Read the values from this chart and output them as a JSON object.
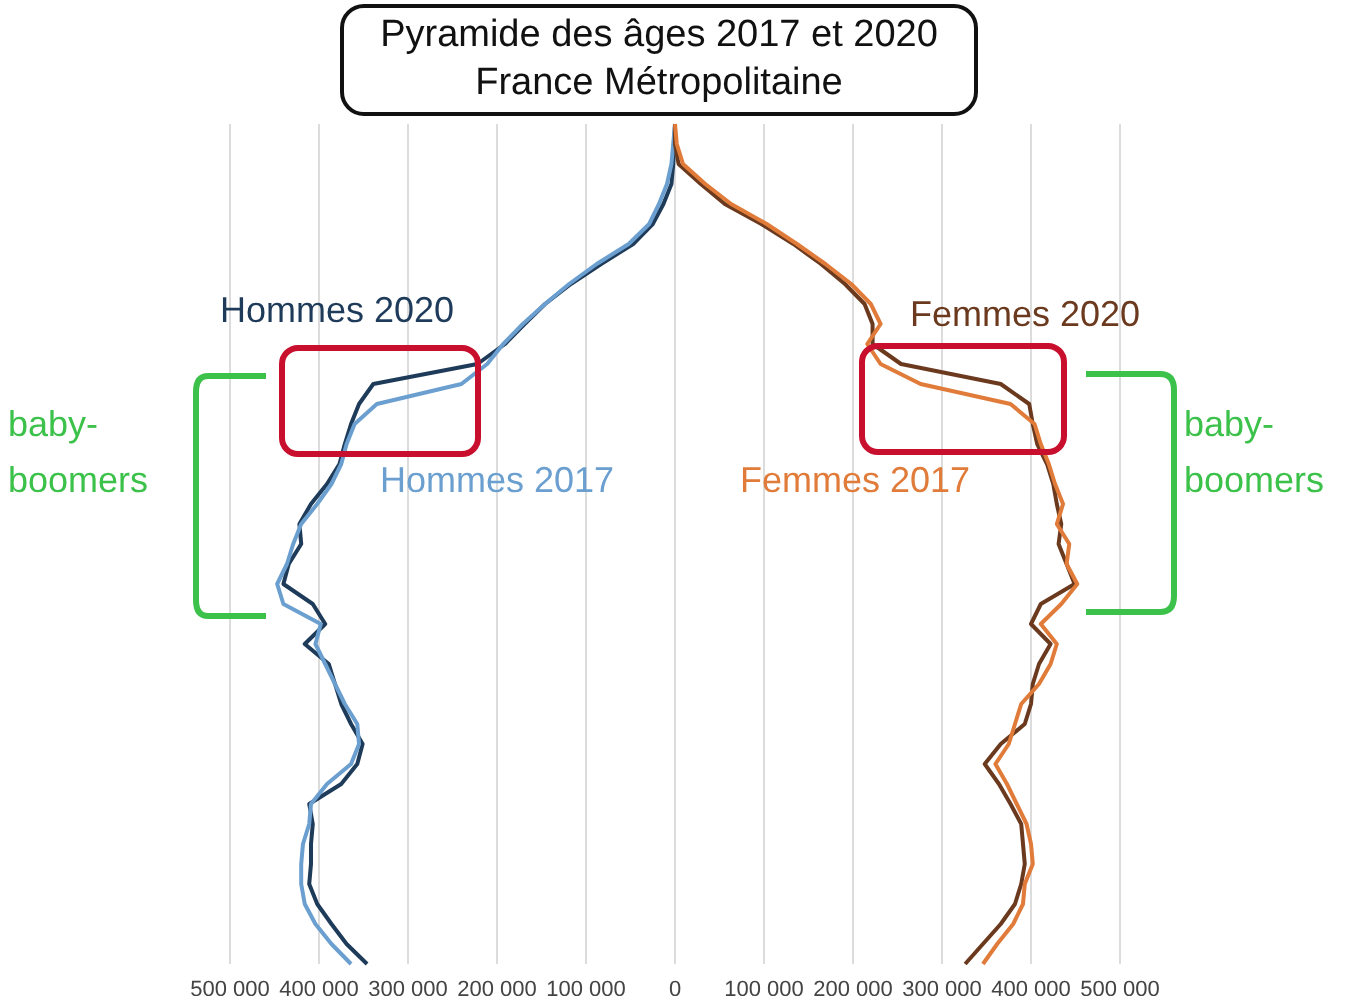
{
  "chart_data": {
    "type": "line",
    "orientation": "horizontal",
    "title": "Pyramide des âges 2017 et 2020",
    "subtitle": "France Métropolitaine",
    "categories": [
      null,
      null,
      null,
      null,
      null,
      null,
      null,
      null,
      null,
      null,
      null,
      null,
      null,
      null,
      null,
      null,
      null,
      null,
      null,
      null,
      null,
      null,
      null,
      null,
      null,
      null,
      null,
      null,
      null,
      null,
      null,
      null,
      null,
      null,
      null,
      null,
      null,
      null,
      null,
      null,
      null,
      null,
      null
    ],
    "series": [
      {
        "name": "Hommes 2020",
        "color": "#1f3b5a",
        "values": [
          0,
          -1000,
          -2000,
          -4000,
          -13000,
          -25000,
          -47000,
          -83000,
          -117000,
          -146000,
          -169000,
          -191000,
          -222000,
          -339000,
          -355000,
          -364000,
          -371000,
          -377000,
          -391000,
          -409000,
          -422000,
          -420000,
          -434000,
          -440000,
          -407000,
          -393000,
          -416000,
          -389000,
          -382000,
          -375000,
          -364000,
          -351000,
          -357000,
          -375000,
          -411000,
          -407000,
          -409000,
          -409000,
          -411000,
          -402000,
          -386000,
          -369000,
          -346000
        ]
      },
      {
        "name": "Hommes 2017",
        "color": "#6a9fd0",
        "values": [
          0,
          -2000,
          -4000,
          -9000,
          -18000,
          -29000,
          -52000,
          -88000,
          -119000,
          -146000,
          -171000,
          -193000,
          -211000,
          -240000,
          -335000,
          -360000,
          -369000,
          -375000,
          -386000,
          -402000,
          -420000,
          -429000,
          -436000,
          -447000,
          -440000,
          -398000,
          -404000,
          -393000,
          -382000,
          -371000,
          -357000,
          -355000,
          -364000,
          -391000,
          -409000,
          -411000,
          -418000,
          -420000,
          -420000,
          -416000,
          -404000,
          -386000,
          -364000
        ]
      },
      {
        "name": "Femmes 2020",
        "color": "#6b3a1e",
        "values": [
          0,
          0,
          4000,
          29000,
          56000,
          97000,
          133000,
          164000,
          191000,
          213000,
          222000,
          222000,
          254000,
          366000,
          398000,
          402000,
          407000,
          418000,
          425000,
          429000,
          434000,
          431000,
          440000,
          449000,
          411000,
          400000,
          422000,
          409000,
          402000,
          400000,
          393000,
          366000,
          348000,
          364000,
          377000,
          389000,
          391000,
          393000,
          389000,
          382000,
          366000,
          346000,
          326000
        ]
      },
      {
        "name": "Femmes 2017",
        "color": "#e07b39",
        "values": [
          0,
          2000,
          9000,
          34000,
          63000,
          103000,
          137000,
          169000,
          198000,
          220000,
          231000,
          216000,
          231000,
          276000,
          377000,
          404000,
          411000,
          420000,
          427000,
          436000,
          429000,
          443000,
          440000,
          452000,
          434000,
          411000,
          429000,
          422000,
          409000,
          389000,
          382000,
          375000,
          360000,
          373000,
          384000,
          395000,
          400000,
          402000,
          393000,
          391000,
          380000,
          362000,
          346000
        ]
      }
    ],
    "xlim": [
      -500000,
      500000
    ],
    "xticks": [
      {
        "value": -500000,
        "label": "500 000"
      },
      {
        "value": -400000,
        "label": "400 000"
      },
      {
        "value": -300000,
        "label": "300 000"
      },
      {
        "value": -200000,
        "label": "200 000"
      },
      {
        "value": -100000,
        "label": "100 000"
      },
      0,
      {
        "value": 100000,
        "label": "100 000"
      },
      {
        "value": 200000,
        "label": "200 000"
      },
      {
        "value": 300000,
        "label": "300 000"
      },
      {
        "value": 400000,
        "label": "400 000"
      },
      {
        "value": 500000,
        "label": "500 000"
      }
    ],
    "grid": "x",
    "marker": "none",
    "line_style": "solid",
    "tick_labels": "x",
    "annotations": [
      "baby-boomers",
      "baby-boomers"
    ]
  }
}
